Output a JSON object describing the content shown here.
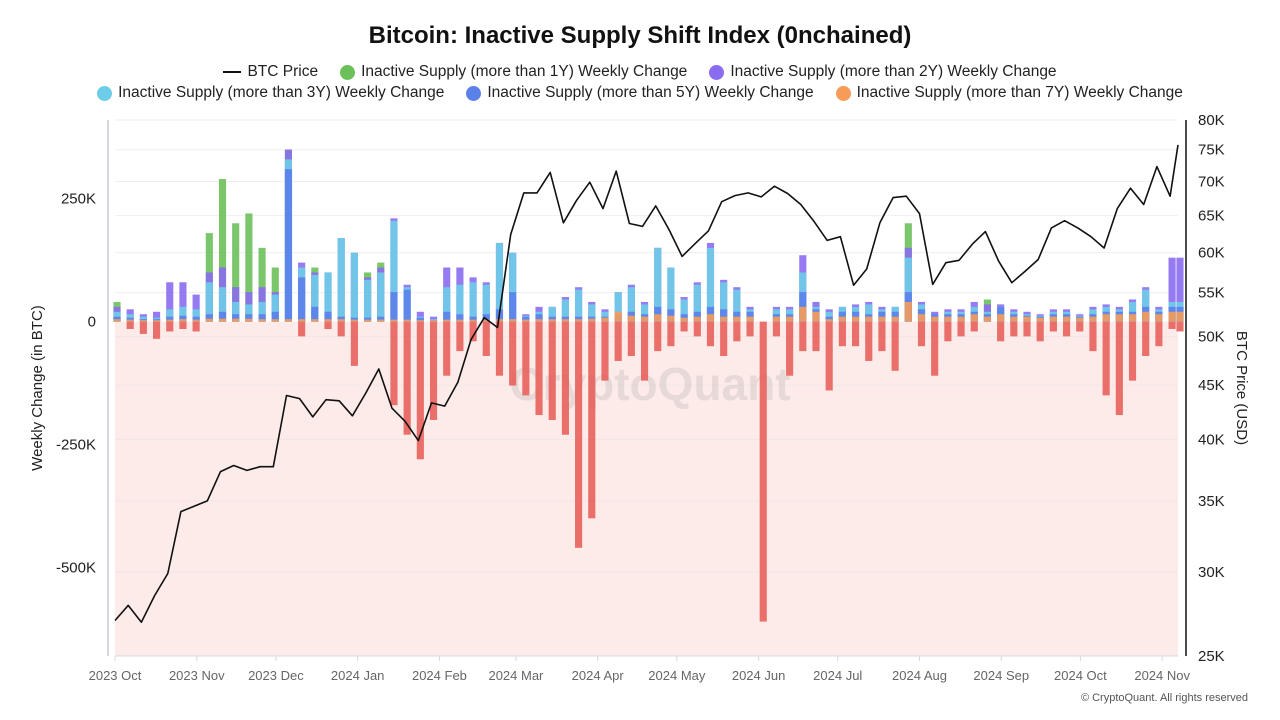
{
  "chart_data": {
    "type": "bar+line",
    "title": "Bitcoin: Inactive Supply Shift Index (0nchained)",
    "ylabel_left": "Weekly Change (in BTC)",
    "ylabel_right": "BTC Price (USD)",
    "ylim_left": [
      -680000,
      410000
    ],
    "ylim_right": [
      25000,
      80000
    ],
    "right_scale": "log",
    "grid": true,
    "legend_placement": "top",
    "left_ticks": [
      {
        "v": 250000,
        "label": "250K"
      },
      {
        "v": 0,
        "label": "0"
      },
      {
        "v": -250000,
        "label": "-250K"
      },
      {
        "v": -500000,
        "label": "-500K"
      }
    ],
    "right_ticks": [
      {
        "v": 80000,
        "label": "80K"
      },
      {
        "v": 75000,
        "label": "75K"
      },
      {
        "v": 70000,
        "label": "70K"
      },
      {
        "v": 65000,
        "label": "65K"
      },
      {
        "v": 60000,
        "label": "60K"
      },
      {
        "v": 55000,
        "label": "55K"
      },
      {
        "v": 50000,
        "label": "50K"
      },
      {
        "v": 45000,
        "label": "45K"
      },
      {
        "v": 40000,
        "label": "40K"
      },
      {
        "v": 35000,
        "label": "35K"
      },
      {
        "v": 30000,
        "label": "30K"
      },
      {
        "v": 25000,
        "label": "25K"
      }
    ],
    "x_ticks": [
      {
        "date": "2023-10-01",
        "label": "2023 Oct"
      },
      {
        "date": "2023-11-01",
        "label": "2023 Nov"
      },
      {
        "date": "2023-12-01",
        "label": "2023 Dec"
      },
      {
        "date": "2024-01-01",
        "label": "2024 Jan"
      },
      {
        "date": "2024-02-01",
        "label": "2024 Feb"
      },
      {
        "date": "2024-03-01",
        "label": "2024 Mar"
      },
      {
        "date": "2024-04-01",
        "label": "2024 Apr"
      },
      {
        "date": "2024-05-01",
        "label": "2024 May"
      },
      {
        "date": "2024-06-01",
        "label": "2024 Jun"
      },
      {
        "date": "2024-07-01",
        "label": "2024 Jul"
      },
      {
        "date": "2024-08-01",
        "label": "2024 Aug"
      },
      {
        "date": "2024-09-01",
        "label": "2024 Sep"
      },
      {
        "date": "2024-10-01",
        "label": "2024 Oct"
      },
      {
        "date": "2024-11-01",
        "label": "2024 Nov"
      }
    ],
    "x_range": [
      "2023-10-01",
      "2024-11-07"
    ],
    "negative_color": "#e8605c",
    "negative_zone_color": "#fcebe8",
    "dates": [
      "2023-10-01",
      "2023-10-06",
      "2023-10-11",
      "2023-10-16",
      "2023-10-21",
      "2023-10-26",
      "2023-10-31",
      "2023-11-05",
      "2023-11-10",
      "2023-11-15",
      "2023-11-20",
      "2023-11-25",
      "2023-11-30",
      "2023-12-05",
      "2023-12-10",
      "2023-12-15",
      "2023-12-20",
      "2023-12-25",
      "2023-12-30",
      "2024-01-04",
      "2024-01-09",
      "2024-01-14",
      "2024-01-19",
      "2024-01-24",
      "2024-01-29",
      "2024-02-03",
      "2024-02-08",
      "2024-02-13",
      "2024-02-18",
      "2024-02-23",
      "2024-02-28",
      "2024-03-04",
      "2024-03-09",
      "2024-03-14",
      "2024-03-19",
      "2024-03-24",
      "2024-03-29",
      "2024-04-03",
      "2024-04-08",
      "2024-04-13",
      "2024-04-18",
      "2024-04-23",
      "2024-04-28",
      "2024-05-03",
      "2024-05-08",
      "2024-05-13",
      "2024-05-18",
      "2024-05-23",
      "2024-05-28",
      "2024-06-02",
      "2024-06-07",
      "2024-06-12",
      "2024-06-17",
      "2024-06-22",
      "2024-06-27",
      "2024-07-02",
      "2024-07-07",
      "2024-07-12",
      "2024-07-17",
      "2024-07-22",
      "2024-07-27",
      "2024-08-01",
      "2024-08-06",
      "2024-08-11",
      "2024-08-16",
      "2024-08-21",
      "2024-08-26",
      "2024-08-31",
      "2024-09-05",
      "2024-09-10",
      "2024-09-15",
      "2024-09-20",
      "2024-09-25",
      "2024-09-30",
      "2024-10-05",
      "2024-10-10",
      "2024-10-15",
      "2024-10-20",
      "2024-10-25",
      "2024-10-30",
      "2024-11-04",
      "2024-11-07"
    ],
    "series": [
      {
        "name": "BTC Price",
        "type": "line",
        "axis": "right",
        "color": "#111111",
        "values": [
          27000,
          27900,
          26900,
          28500,
          29900,
          34200,
          34600,
          35000,
          37300,
          37800,
          37400,
          37700,
          37700,
          44000,
          43700,
          42000,
          43600,
          43500,
          42100,
          44200,
          46600,
          42800,
          41600,
          39900,
          43300,
          43000,
          45300,
          49700,
          52100,
          51000,
          62400,
          68300,
          68300,
          71400,
          64000,
          67200,
          69900,
          66000,
          71600,
          63900,
          63500,
          66400,
          63100,
          59500,
          61200,
          62900,
          67000,
          67900,
          68300,
          67700,
          69300,
          68200,
          66600,
          64200,
          61600,
          62100,
          55900,
          57900,
          64000,
          67600,
          67800,
          65300,
          56000,
          58700,
          59000,
          61100,
          62800,
          58900,
          56200,
          57600,
          59100,
          63300,
          64300,
          63300,
          62100,
          60600,
          66000,
          69000,
          66600,
          72300,
          67800,
          75800
        ]
      },
      {
        "name": "Inactive Supply (more than 1Y) Weekly Change",
        "type": "bar",
        "axis": "left",
        "color": "#6cc05a",
        "values": [
          40000,
          -15000,
          -25000,
          -35000,
          -20000,
          -15000,
          -20000,
          180000,
          290000,
          200000,
          220000,
          150000,
          110000,
          350000,
          -30000,
          110000,
          -15000,
          -30000,
          -90000,
          100000,
          120000,
          -170000,
          -230000,
          -280000,
          -200000,
          -110000,
          -60000,
          -40000,
          -70000,
          -110000,
          -130000,
          -150000,
          -190000,
          -200000,
          -230000,
          -460000,
          -400000,
          -120000,
          -80000,
          -70000,
          -120000,
          -60000,
          -50000,
          -20000,
          -30000,
          -50000,
          -70000,
          -40000,
          -30000,
          -610000,
          -30000,
          -110000,
          -60000,
          -60000,
          -140000,
          -50000,
          -50000,
          -80000,
          -60000,
          -100000,
          200000,
          -50000,
          -110000,
          -40000,
          -30000,
          -20000,
          45000,
          -40000,
          -30000,
          -30000,
          -40000,
          -20000,
          -30000,
          -20000,
          -60000,
          -150000,
          -190000,
          -120000,
          -70000,
          -50000,
          -15000,
          -20000
        ]
      },
      {
        "name": "Inactive Supply (more than 2Y) Weekly Change",
        "type": "bar",
        "axis": "left",
        "color": "#8a6cf0",
        "values": [
          30000,
          25000,
          15000,
          20000,
          80000,
          80000,
          55000,
          100000,
          110000,
          70000,
          60000,
          70000,
          60000,
          350000,
          120000,
          100000,
          100000,
          170000,
          140000,
          90000,
          110000,
          210000,
          75000,
          20000,
          10000,
          110000,
          110000,
          90000,
          80000,
          160000,
          140000,
          15000,
          30000,
          30000,
          50000,
          70000,
          40000,
          25000,
          60000,
          75000,
          40000,
          150000,
          110000,
          50000,
          80000,
          160000,
          85000,
          70000,
          30000,
          0,
          30000,
          30000,
          135000,
          40000,
          25000,
          30000,
          35000,
          40000,
          30000,
          30000,
          150000,
          40000,
          20000,
          25000,
          25000,
          40000,
          35000,
          35000,
          25000,
          20000,
          15000,
          25000,
          25000,
          15000,
          30000,
          35000,
          30000,
          45000,
          70000,
          30000,
          130000,
          130000
        ]
      },
      {
        "name": "Inactive Supply (more than 3Y) Weekly Change",
        "type": "bar",
        "axis": "left",
        "color": "#6dcde8",
        "values": [
          20000,
          15000,
          10000,
          8000,
          25000,
          30000,
          25000,
          80000,
          70000,
          40000,
          35000,
          40000,
          55000,
          330000,
          110000,
          95000,
          100000,
          170000,
          140000,
          85000,
          100000,
          205000,
          70000,
          10000,
          5000,
          70000,
          75000,
          80000,
          75000,
          160000,
          140000,
          12000,
          20000,
          30000,
          45000,
          65000,
          35000,
          20000,
          60000,
          70000,
          35000,
          150000,
          110000,
          45000,
          75000,
          150000,
          80000,
          65000,
          25000,
          0,
          25000,
          25000,
          100000,
          30000,
          20000,
          30000,
          30000,
          35000,
          25000,
          30000,
          130000,
          35000,
          15000,
          20000,
          20000,
          30000,
          20000,
          30000,
          20000,
          15000,
          12000,
          20000,
          20000,
          12000,
          25000,
          30000,
          25000,
          40000,
          65000,
          25000,
          40000,
          40000
        ]
      },
      {
        "name": "Inactive Supply (more than 5Y) Weekly Change",
        "type": "bar",
        "axis": "left",
        "color": "#5b80ea",
        "values": [
          10000,
          8000,
          5000,
          5000,
          10000,
          12000,
          10000,
          15000,
          20000,
          15000,
          15000,
          15000,
          20000,
          310000,
          90000,
          30000,
          20000,
          10000,
          8000,
          8000,
          10000,
          60000,
          65000,
          8000,
          3000,
          20000,
          15000,
          10000,
          15000,
          25000,
          60000,
          10000,
          15000,
          10000,
          10000,
          10000,
          10000,
          10000,
          15000,
          20000,
          15000,
          30000,
          25000,
          15000,
          20000,
          30000,
          25000,
          20000,
          20000,
          0,
          15000,
          15000,
          60000,
          25000,
          10000,
          20000,
          20000,
          15000,
          20000,
          20000,
          60000,
          25000,
          15000,
          15000,
          15000,
          20000,
          15000,
          30000,
          15000,
          12000,
          10000,
          15000,
          15000,
          10000,
          15000,
          20000,
          20000,
          20000,
          30000,
          20000,
          30000,
          30000
        ]
      },
      {
        "name": "Inactive Supply (more than 7Y) Weekly Change",
        "type": "bar",
        "axis": "left",
        "color": "#f69c58",
        "values": [
          5000,
          4000,
          3000,
          3000,
          4000,
          5000,
          4000,
          6000,
          6000,
          6000,
          6000,
          5000,
          5000,
          5000,
          5000,
          5000,
          5000,
          5000,
          4000,
          4000,
          4000,
          4000,
          4000,
          3000,
          3000,
          4000,
          4000,
          4000,
          4000,
          5000,
          5000,
          4000,
          5000,
          5000,
          5000,
          5000,
          6000,
          8000,
          20000,
          12000,
          10000,
          15000,
          12000,
          8000,
          10000,
          15000,
          10000,
          10000,
          10000,
          0,
          10000,
          10000,
          30000,
          20000,
          5000,
          10000,
          10000,
          10000,
          10000,
          10000,
          40000,
          15000,
          10000,
          10000,
          10000,
          15000,
          10000,
          15000,
          10000,
          10000,
          8000,
          10000,
          10000,
          8000,
          10000,
          15000,
          15000,
          15000,
          20000,
          15000,
          20000,
          20000
        ]
      }
    ],
    "legend": [
      {
        "label": "BTC Price",
        "marker": "line",
        "color": "#111111"
      },
      {
        "label": "Inactive Supply (more than 1Y) Weekly Change",
        "marker": "dot",
        "color": "#6cc05a"
      },
      {
        "label": "Inactive Supply (more than 2Y) Weekly Change",
        "marker": "dot",
        "color": "#8a6cf0"
      },
      {
        "label": "Inactive Supply (more than 3Y) Weekly Change",
        "marker": "dot",
        "color": "#6dcde8"
      },
      {
        "label": "Inactive Supply (more than 5Y) Weekly Change",
        "marker": "dot",
        "color": "#5b80ea"
      },
      {
        "label": "Inactive Supply (more than 7Y) Weekly Change",
        "marker": "dot",
        "color": "#f69c58"
      }
    ]
  },
  "watermark": "CryptoQuant",
  "copyright": "© CryptoQuant. All rights reserved"
}
